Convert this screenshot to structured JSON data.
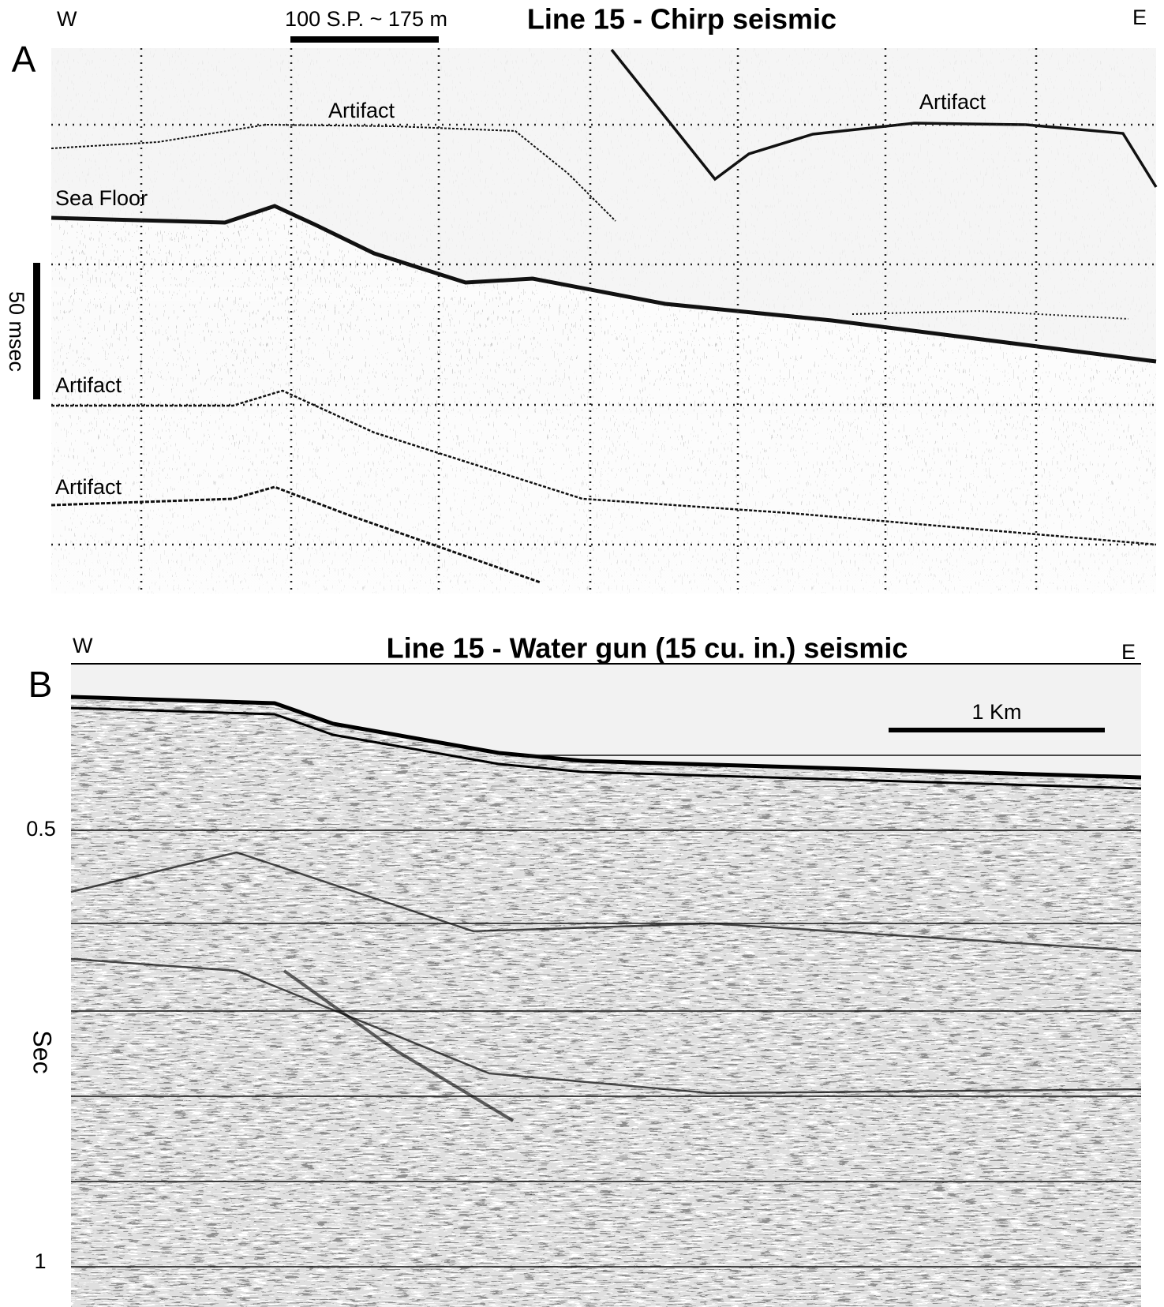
{
  "panel_a": {
    "label": "A",
    "title": "Line 15 - Chirp seismic",
    "west": "W",
    "east": "E",
    "scale_label": "100 S.P. ~ 175 m",
    "vertical_scale_label": "50 msec",
    "annotations": [
      "Artifact",
      "Artifact",
      "Sea Floor",
      "Artifact",
      "Artifact"
    ]
  },
  "panel_b": {
    "label": "B",
    "title": "Line 15 - Water gun (15 cu. in.) seismic",
    "west": "W",
    "east": "E",
    "scale_label": "1 Km",
    "axis_title": "Sec",
    "axis_labels": [
      "0.5",
      "1"
    ]
  }
}
